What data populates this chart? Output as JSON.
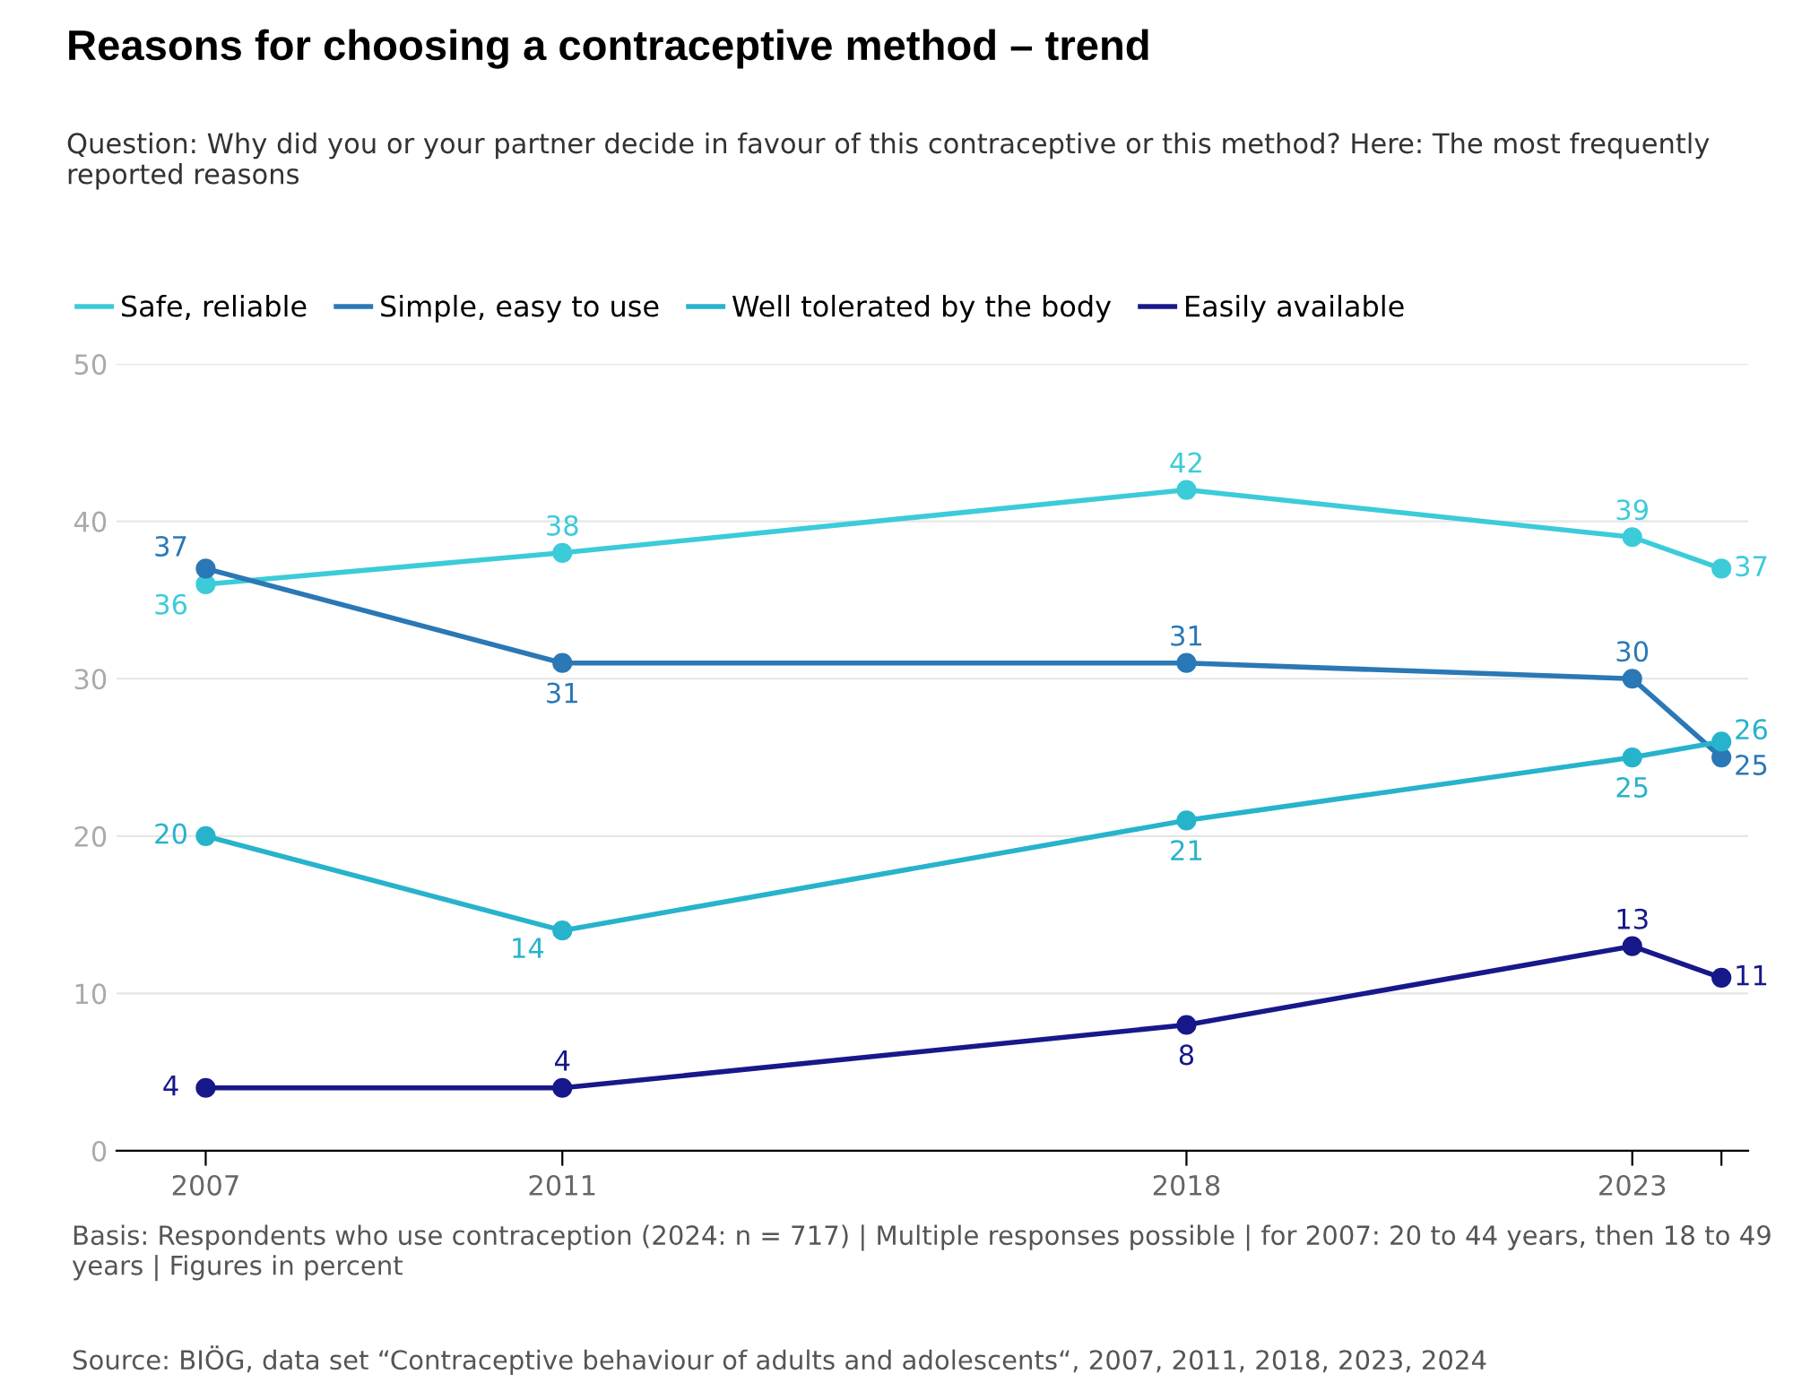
{
  "chart_data": {
    "type": "line",
    "title": "Reasons for choosing a contraceptive method – trend",
    "subtitle": "Question: Why did you or your partner decide in favour of this contraceptive or this method? Here: The most frequently reported reasons",
    "x": [
      2007,
      2011,
      2018,
      2023,
      2024
    ],
    "series": [
      {
        "name": "Safe, reliable",
        "color": "#3ccbd9",
        "values": [
          36,
          38,
          42,
          39,
          37
        ]
      },
      {
        "name": "Simple, easy to use",
        "color": "#2a78b6",
        "values": [
          37,
          31,
          31,
          30,
          25
        ]
      },
      {
        "name": "Well tolerated by the body",
        "color": "#27b3cb",
        "values": [
          20,
          14,
          21,
          25,
          26
        ]
      },
      {
        "name": "Easily available",
        "color": "#17188a",
        "values": [
          4,
          4,
          8,
          13,
          11
        ]
      }
    ],
    "xlim": [
      2006,
      2024.3
    ],
    "xticks": [
      2007,
      2011,
      2018,
      2023,
      {
        "value": 2024,
        "label": null
      }
    ],
    "ylim": [
      0,
      50
    ],
    "yticks": [
      0,
      10,
      20,
      30,
      40,
      50
    ],
    "grid": "y",
    "legend": "top left",
    "marker": "circle",
    "line_style": "solid",
    "data_labels": true,
    "annotations": [
      "Basis: Respondents who use contraception (2024: n = 717) | Multiple responses possible | for 2007: 20 to 44 years, then 18 to 49 years | Figures in percent",
      "Source: BIÖG, data set “Contraceptive behaviour of adults and adolescents“, 2007, 2011, 2018, 2023, 2024"
    ]
  }
}
